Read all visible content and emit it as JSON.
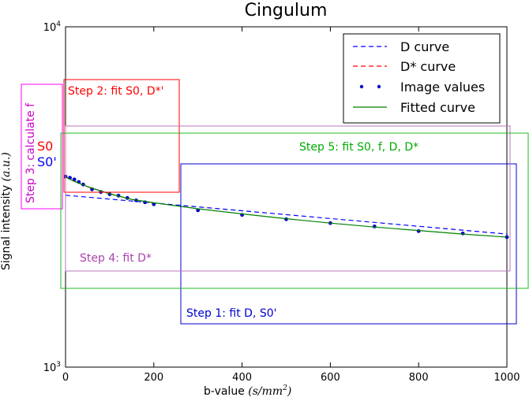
{
  "chart_data": {
    "type": "scatter",
    "title": "Cingulum",
    "xlabel": "b-value (s/mm²)",
    "ylabel": "Signal intensity (a.u.)",
    "x_axis": {
      "xlim": [
        0,
        1000
      ],
      "ticks": [
        "0",
        "200",
        "400",
        "600",
        "800",
        "1000"
      ]
    },
    "y_axis": {
      "scale": "log",
      "ylim": [
        1000,
        10000
      ],
      "ticks": [
        "10³",
        "10⁴"
      ]
    },
    "grid": false,
    "legend_position": "top-right",
    "series": [
      {
        "name": "D curve",
        "style": "dashed",
        "color": "#0000ff",
        "x": [
          0,
          1000
        ],
        "y": [
          3200,
          2460
        ]
      },
      {
        "name": "D* curve",
        "style": "dashed",
        "color": "#ff0000",
        "x": [
          0,
          20,
          50,
          100,
          150,
          200
        ],
        "y": [
          3620,
          3515,
          3390,
          3230,
          3110,
          3040
        ]
      },
      {
        "name": "Image values",
        "style": "dots",
        "color": "#0000cc",
        "x": [
          0,
          10,
          20,
          30,
          40,
          60,
          80,
          100,
          120,
          140,
          160,
          180,
          200,
          300,
          400,
          500,
          600,
          700,
          800,
          900,
          1000
        ],
        "y": [
          3630,
          3600,
          3560,
          3500,
          3440,
          3330,
          3270,
          3220,
          3190,
          3140,
          3090,
          3050,
          3010,
          2890,
          2800,
          2720,
          2650,
          2590,
          2510,
          2470,
          2410
        ]
      },
      {
        "name": "Fitted curve",
        "style": "solid",
        "color": "#008000",
        "x": [
          0,
          20,
          50,
          100,
          150,
          200,
          300,
          400,
          500,
          600,
          700,
          800,
          900,
          1000
        ],
        "y": [
          3620,
          3515,
          3390,
          3230,
          3110,
          3040,
          2920,
          2820,
          2730,
          2650,
          2580,
          2520,
          2460,
          2410
        ]
      }
    ],
    "annotations": {
      "s0": {
        "text": "S0",
        "color": "#ff0000"
      },
      "s0_prime": {
        "text": "S0'",
        "color": "#0000ff"
      },
      "steps": [
        {
          "text": "Step 1: fit D, S0'",
          "color": "#0000cc"
        },
        {
          "text": "Step 2: fit S0, D*'",
          "color": "#ff0000"
        },
        {
          "text": "Step 3: calculate f",
          "color": "#cc00cc"
        },
        {
          "text": "Step 4: fit D*",
          "color": "#aa44aa"
        },
        {
          "text": "Step 5: fit S0, f, D, D*",
          "color": "#00aa00"
        }
      ]
    }
  }
}
